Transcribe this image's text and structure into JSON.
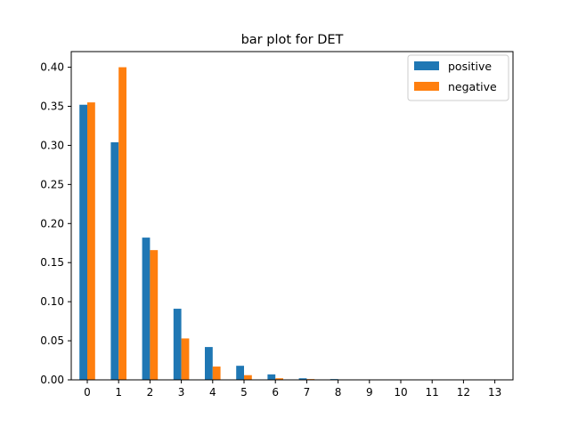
{
  "chart_data": {
    "type": "bar",
    "title": "bar plot for DET",
    "xlabel": "",
    "ylabel": "",
    "categories": [
      "0",
      "1",
      "2",
      "3",
      "4",
      "5",
      "6",
      "7",
      "8",
      "9",
      "10",
      "11",
      "12",
      "13"
    ],
    "series": [
      {
        "name": "positive",
        "color": "#1f77b4",
        "values": [
          0.352,
          0.304,
          0.182,
          0.091,
          0.042,
          0.018,
          0.007,
          0.002,
          0.001,
          0.0,
          0.0,
          0.0,
          0.0,
          0.0
        ]
      },
      {
        "name": "negative",
        "color": "#ff7f0e",
        "values": [
          0.355,
          0.4,
          0.166,
          0.053,
          0.017,
          0.006,
          0.002,
          0.001,
          0.0,
          0.0,
          0.0,
          0.0,
          0.0,
          0.0
        ]
      }
    ],
    "ylim": [
      0,
      0.42
    ],
    "yticks": [
      "0.00",
      "0.05",
      "0.10",
      "0.15",
      "0.20",
      "0.25",
      "0.30",
      "0.35",
      "0.40"
    ],
    "grid": false,
    "legend_position": "top-right"
  }
}
